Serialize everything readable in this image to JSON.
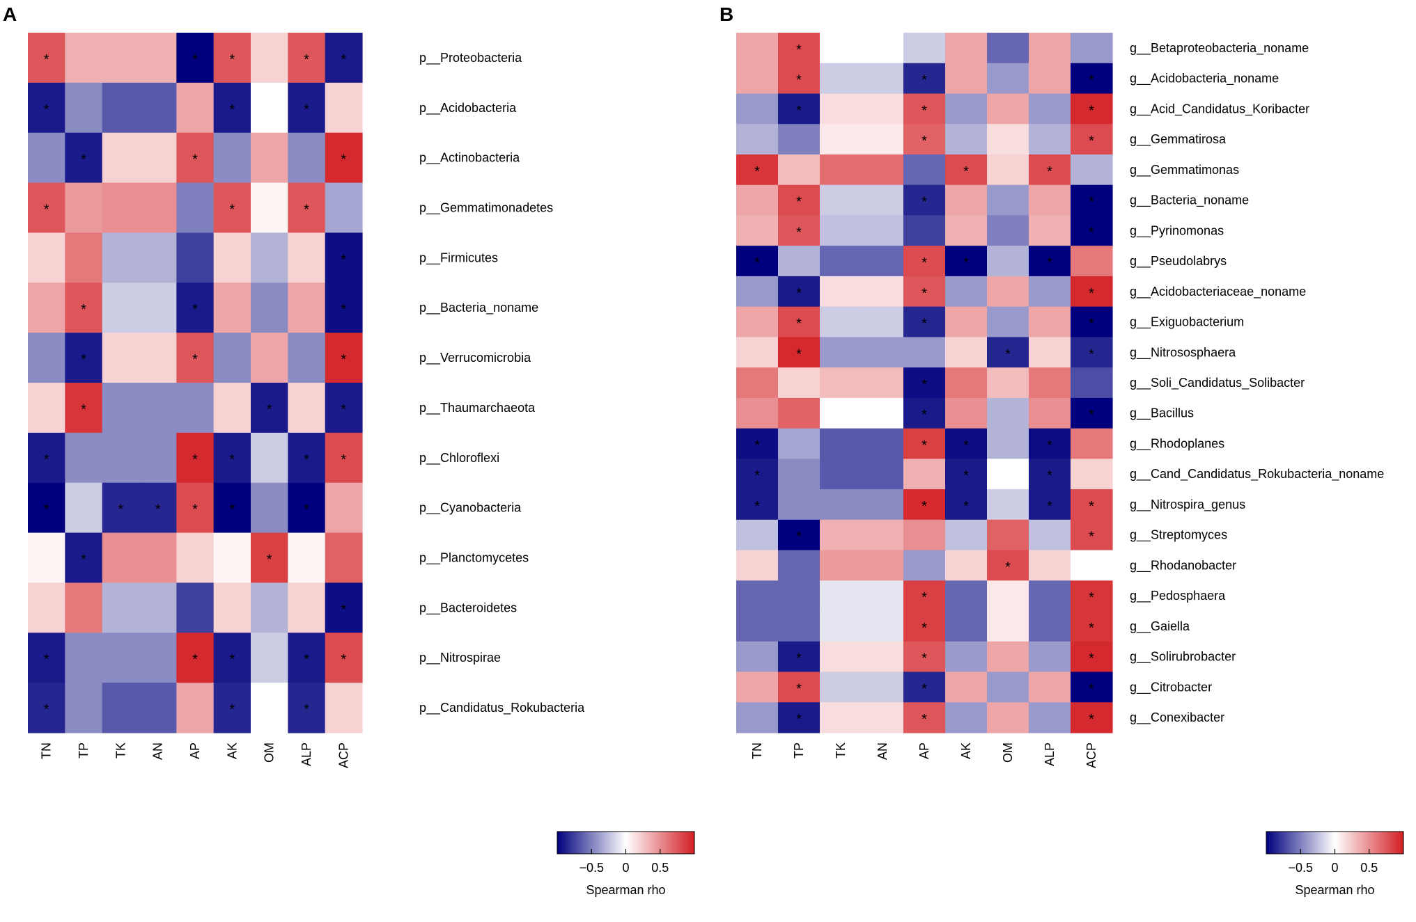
{
  "figure": {
    "panel_a_label": "A",
    "panel_b_label": "B"
  },
  "colors": {
    "low": "#00007e",
    "mid": "#ffffff",
    "high": "#d21e23",
    "text": "#000000"
  },
  "chart_data": [
    {
      "type": "heatmap",
      "panel": "A",
      "title": "",
      "xlabel": "",
      "ylabel": "",
      "x": [
        "TN",
        "TP",
        "TK",
        "AN",
        "AP",
        "AK",
        "OM",
        "ALP",
        "ACP"
      ],
      "y": [
        "p__Proteobacteria",
        "p__Acidobacteria",
        "p__Actinobacteria",
        "p__Gemmatimonadetes",
        "p__Firmicutes",
        "p__Bacteria_noname",
        "p__Verrucomicrobia",
        "p__Thaumarchaeota",
        "p__Chloroflexi",
        "p__Cyanobacteria",
        "p__Planctomycetes",
        "p__Bacteroidetes",
        "p__Nitrospirae",
        "p__Candidatus_Rokubacteria"
      ],
      "values": [
        [
          0.75,
          0.35,
          0.35,
          0.35,
          -1.0,
          0.75,
          0.2,
          0.75,
          -0.9
        ],
        [
          -0.9,
          -0.45,
          -0.65,
          -0.65,
          0.4,
          -0.9,
          0.0,
          -0.9,
          0.2
        ],
        [
          -0.45,
          -0.9,
          0.2,
          0.2,
          0.75,
          -0.45,
          0.4,
          -0.45,
          0.95
        ],
        [
          0.75,
          0.45,
          0.5,
          0.5,
          -0.5,
          0.75,
          0.05,
          0.75,
          -0.35
        ],
        [
          0.2,
          0.6,
          -0.3,
          -0.3,
          -0.75,
          0.2,
          -0.3,
          0.2,
          -0.95
        ],
        [
          0.4,
          0.75,
          -0.2,
          -0.2,
          -0.9,
          0.4,
          -0.45,
          0.4,
          -0.95
        ],
        [
          -0.45,
          -0.9,
          0.2,
          0.2,
          0.75,
          -0.45,
          0.4,
          -0.45,
          0.95
        ],
        [
          0.2,
          0.9,
          -0.45,
          -0.45,
          -0.45,
          0.2,
          -0.9,
          0.2,
          -0.9
        ],
        [
          -0.9,
          -0.45,
          -0.45,
          -0.45,
          0.95,
          -0.9,
          -0.2,
          -0.9,
          0.8
        ],
        [
          -1.0,
          -0.2,
          -0.85,
          -0.85,
          0.8,
          -1.0,
          -0.45,
          -1.0,
          0.4
        ],
        [
          0.05,
          -0.9,
          0.5,
          0.5,
          0.2,
          0.05,
          0.85,
          0.05,
          0.7
        ],
        [
          0.2,
          0.6,
          -0.3,
          -0.3,
          -0.75,
          0.2,
          -0.3,
          0.2,
          -0.95
        ],
        [
          -0.9,
          -0.45,
          -0.45,
          -0.45,
          0.95,
          -0.9,
          -0.2,
          -0.9,
          0.8
        ],
        [
          -0.85,
          -0.45,
          -0.65,
          -0.65,
          0.4,
          -0.85,
          0.0,
          -0.85,
          0.2
        ]
      ],
      "significant": [
        [
          1,
          0,
          0,
          0,
          1,
          1,
          0,
          1,
          1
        ],
        [
          1,
          0,
          0,
          0,
          0,
          1,
          0,
          1,
          0
        ],
        [
          0,
          1,
          0,
          0,
          1,
          0,
          0,
          0,
          1
        ],
        [
          1,
          0,
          0,
          0,
          0,
          1,
          0,
          1,
          0
        ],
        [
          0,
          0,
          0,
          0,
          0,
          0,
          0,
          0,
          1
        ],
        [
          0,
          1,
          0,
          0,
          1,
          0,
          0,
          0,
          1
        ],
        [
          0,
          1,
          0,
          0,
          1,
          0,
          0,
          0,
          1
        ],
        [
          0,
          1,
          0,
          0,
          0,
          0,
          1,
          0,
          1
        ],
        [
          1,
          0,
          0,
          0,
          1,
          1,
          0,
          1,
          1
        ],
        [
          1,
          0,
          1,
          1,
          1,
          1,
          0,
          1,
          0
        ],
        [
          0,
          1,
          0,
          0,
          0,
          0,
          1,
          0,
          0
        ],
        [
          0,
          0,
          0,
          0,
          0,
          0,
          0,
          0,
          1
        ],
        [
          1,
          0,
          0,
          0,
          1,
          1,
          0,
          1,
          1
        ],
        [
          1,
          0,
          0,
          0,
          0,
          1,
          0,
          1,
          0
        ]
      ],
      "significance_marker": "*",
      "legend": {
        "title": "Spearman rho",
        "range": [
          -1,
          1
        ],
        "ticks": [
          -0.5,
          0,
          0.5
        ],
        "tick_labels": [
          "−0.5",
          "0",
          "0.5"
        ],
        "placement": "bottom-right"
      }
    },
    {
      "type": "heatmap",
      "panel": "B",
      "title": "",
      "xlabel": "",
      "ylabel": "",
      "x": [
        "TN",
        "TP",
        "TK",
        "AN",
        "AP",
        "AK",
        "OM",
        "ALP",
        "ACP"
      ],
      "y": [
        "g__Betaproteobacteria_noname",
        "g__Acidobacteria_noname",
        "g__Acid_Candidatus_Koribacter",
        "g__Gemmatirosa",
        "g__Gemmatimonas",
        "g__Bacteria_noname",
        "g__Pyrinomonas",
        "g__Pseudolabrys",
        "g__Acidobacteriaceae_noname",
        "g__Exiguobacterium",
        "g__Nitrososphaera",
        "g__Soli_Candidatus_Solibacter",
        "g__Bacillus",
        "g__Rhodoplanes",
        "g__Cand_Candidatus_Rokubacteria_noname",
        "g__Nitrospira_genus",
        "g__Streptomyces",
        "g__Rhodanobacter",
        "g__Pedosphaera",
        "g__Gaiella",
        "g__Solirubrobacter",
        "g__Citrobacter",
        "g__Conexibacter"
      ],
      "values": [
        [
          0.4,
          0.8,
          0.0,
          0.0,
          -0.2,
          0.4,
          -0.6,
          0.4,
          -0.4
        ],
        [
          0.4,
          0.8,
          -0.2,
          -0.2,
          -0.85,
          0.4,
          -0.4,
          0.4,
          -1.0
        ],
        [
          -0.4,
          -0.9,
          0.15,
          0.15,
          0.75,
          -0.4,
          0.4,
          -0.4,
          0.95
        ],
        [
          -0.3,
          -0.5,
          0.1,
          0.1,
          0.7,
          -0.3,
          0.15,
          -0.3,
          0.8
        ],
        [
          0.9,
          0.3,
          0.65,
          0.65,
          -0.6,
          0.8,
          0.2,
          0.8,
          -0.3
        ],
        [
          0.4,
          0.8,
          -0.2,
          -0.2,
          -0.85,
          0.4,
          -0.4,
          0.4,
          -1.0
        ],
        [
          0.35,
          0.75,
          -0.25,
          -0.25,
          -0.75,
          0.35,
          -0.5,
          0.35,
          -1.0
        ],
        [
          -1.0,
          -0.3,
          -0.6,
          -0.6,
          0.8,
          -1.0,
          -0.3,
          -1.0,
          0.6
        ],
        [
          -0.4,
          -0.9,
          0.15,
          0.15,
          0.75,
          -0.4,
          0.4,
          -0.4,
          0.95
        ],
        [
          0.4,
          0.8,
          -0.2,
          -0.2,
          -0.85,
          0.4,
          -0.4,
          0.4,
          -1.0
        ],
        [
          0.2,
          0.95,
          -0.4,
          -0.4,
          -0.4,
          0.2,
          -0.85,
          0.2,
          -0.85
        ],
        [
          0.6,
          0.2,
          0.3,
          0.3,
          -0.95,
          0.6,
          0.3,
          0.6,
          -0.7
        ],
        [
          0.5,
          0.7,
          0.0,
          0.0,
          -0.9,
          0.5,
          -0.3,
          0.5,
          -1.0
        ],
        [
          -0.95,
          -0.35,
          -0.65,
          -0.65,
          0.85,
          -0.95,
          -0.3,
          -0.95,
          0.6
        ],
        [
          -0.9,
          -0.45,
          -0.65,
          -0.65,
          0.35,
          -0.9,
          0.0,
          -0.9,
          0.2
        ],
        [
          -0.9,
          -0.45,
          -0.45,
          -0.45,
          0.95,
          -0.9,
          -0.2,
          -0.9,
          0.8
        ],
        [
          -0.25,
          -1.0,
          0.35,
          0.35,
          0.5,
          -0.25,
          0.7,
          -0.25,
          0.8
        ],
        [
          0.2,
          -0.6,
          0.45,
          0.45,
          -0.4,
          0.2,
          0.8,
          0.2,
          0.0
        ],
        [
          -0.6,
          -0.6,
          -0.1,
          -0.1,
          0.85,
          -0.6,
          0.1,
          -0.6,
          0.9
        ],
        [
          -0.6,
          -0.6,
          -0.1,
          -0.1,
          0.85,
          -0.6,
          0.1,
          -0.6,
          0.9
        ],
        [
          -0.4,
          -0.9,
          0.15,
          0.15,
          0.75,
          -0.4,
          0.4,
          -0.4,
          0.95
        ],
        [
          0.4,
          0.8,
          -0.2,
          -0.2,
          -0.85,
          0.4,
          -0.4,
          0.4,
          -1.0
        ],
        [
          -0.4,
          -0.9,
          0.15,
          0.15,
          0.75,
          -0.4,
          0.4,
          -0.4,
          0.95
        ]
      ],
      "significant": [
        [
          0,
          1,
          0,
          0,
          0,
          0,
          0,
          0,
          0
        ],
        [
          0,
          1,
          0,
          0,
          1,
          0,
          0,
          0,
          1
        ],
        [
          0,
          1,
          0,
          0,
          1,
          0,
          0,
          0,
          1
        ],
        [
          0,
          0,
          0,
          0,
          1,
          0,
          0,
          0,
          1
        ],
        [
          1,
          0,
          0,
          0,
          0,
          1,
          0,
          1,
          0
        ],
        [
          0,
          1,
          0,
          0,
          1,
          0,
          0,
          0,
          1
        ],
        [
          0,
          1,
          0,
          0,
          0,
          0,
          0,
          0,
          1
        ],
        [
          1,
          0,
          0,
          0,
          1,
          1,
          0,
          1,
          0
        ],
        [
          0,
          1,
          0,
          0,
          1,
          0,
          0,
          0,
          1
        ],
        [
          0,
          1,
          0,
          0,
          1,
          0,
          0,
          0,
          1
        ],
        [
          0,
          1,
          0,
          0,
          0,
          0,
          1,
          0,
          1
        ],
        [
          0,
          0,
          0,
          0,
          1,
          0,
          0,
          0,
          0
        ],
        [
          0,
          0,
          0,
          0,
          1,
          0,
          0,
          0,
          1
        ],
        [
          1,
          0,
          0,
          0,
          1,
          1,
          0,
          1,
          0
        ],
        [
          1,
          0,
          0,
          0,
          0,
          1,
          0,
          1,
          0
        ],
        [
          1,
          0,
          0,
          0,
          1,
          1,
          0,
          1,
          1
        ],
        [
          0,
          1,
          0,
          0,
          0,
          0,
          0,
          0,
          1
        ],
        [
          0,
          0,
          0,
          0,
          0,
          0,
          1,
          0,
          0
        ],
        [
          0,
          0,
          0,
          0,
          1,
          0,
          0,
          0,
          1
        ],
        [
          0,
          0,
          0,
          0,
          1,
          0,
          0,
          0,
          1
        ],
        [
          0,
          1,
          0,
          0,
          1,
          0,
          0,
          0,
          1
        ],
        [
          0,
          1,
          0,
          0,
          1,
          0,
          0,
          0,
          1
        ],
        [
          0,
          1,
          0,
          0,
          1,
          0,
          0,
          0,
          1
        ]
      ],
      "significance_marker": "*",
      "legend": {
        "title": "Spearman rho",
        "range": [
          -1,
          1
        ],
        "ticks": [
          -0.5,
          0,
          0.5
        ],
        "tick_labels": [
          "−0.5",
          "0",
          "0.5"
        ],
        "placement": "bottom-right"
      }
    }
  ]
}
